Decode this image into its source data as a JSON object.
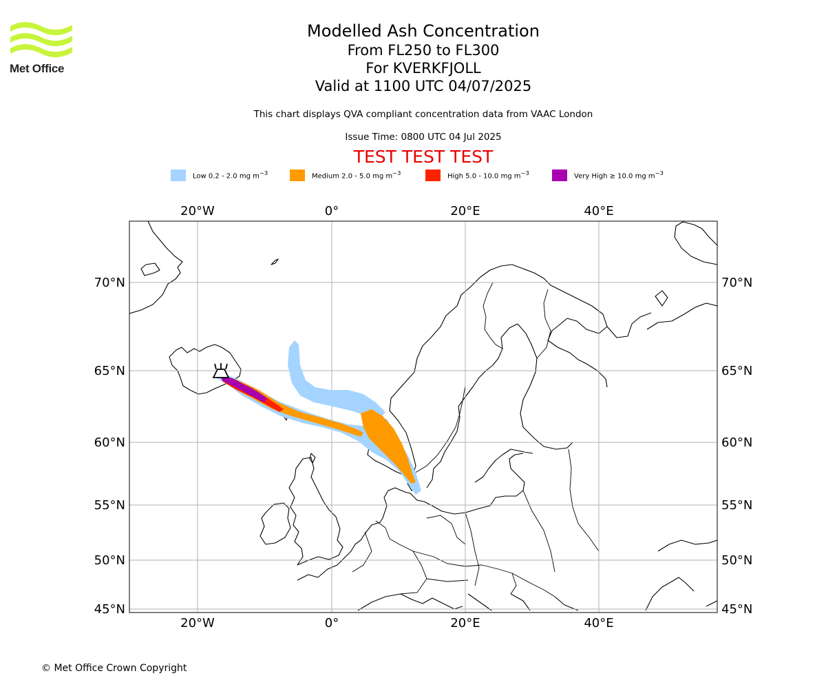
{
  "logo": {
    "text": "Met Office",
    "color": "#c8f53c"
  },
  "title": {
    "line1": "Modelled Ash Concentration",
    "line2": "From FL250 to FL300",
    "line3": "For KVERKFJOLL",
    "line4": "Valid at 1100 UTC 04/07/2025"
  },
  "subtitle": "This chart displays QVA compliant concentration data from VAAC London",
  "issue_time": "Issue Time: 0800 UTC 04 Jul 2025",
  "test_banner": "TEST TEST TEST",
  "legend": [
    {
      "label": "Low 0.2 - 2.0 mg m",
      "sup": "−3",
      "color": "#a4d4ff"
    },
    {
      "label": "Medium 2.0 - 5.0 mg m",
      "sup": "−3",
      "color": "#ff9a00"
    },
    {
      "label": "High 5.0 - 10.0 mg m",
      "sup": "−3",
      "color": "#ff2200"
    },
    {
      "label": "Very High  ≥  10.0 mg m",
      "sup": "−3",
      "color": "#a800b0"
    }
  ],
  "map": {
    "lon_range": [
      -30,
      58
    ],
    "lat_range": [
      45,
      75
    ],
    "lon_ticks": [
      {
        "value": -20,
        "label": "20°W"
      },
      {
        "value": 0,
        "label": "0°"
      },
      {
        "value": 20,
        "label": "20°E"
      },
      {
        "value": 40,
        "label": "40°E"
      }
    ],
    "lat_ticks": [
      {
        "value": 70,
        "label": "70°N"
      },
      {
        "value": 65,
        "label": "65°N"
      },
      {
        "value": 60,
        "label": "60°N"
      },
      {
        "value": 55,
        "label": "55°N"
      },
      {
        "value": 50,
        "label": "50°N"
      },
      {
        "value": 45,
        "label": "45°N"
      }
    ],
    "volcano": {
      "name": "KVERKFJOLL",
      "lon": -16.7,
      "lat": 64.7
    },
    "grid": true
  },
  "copyright": "© Met Office Crown Copyright"
}
